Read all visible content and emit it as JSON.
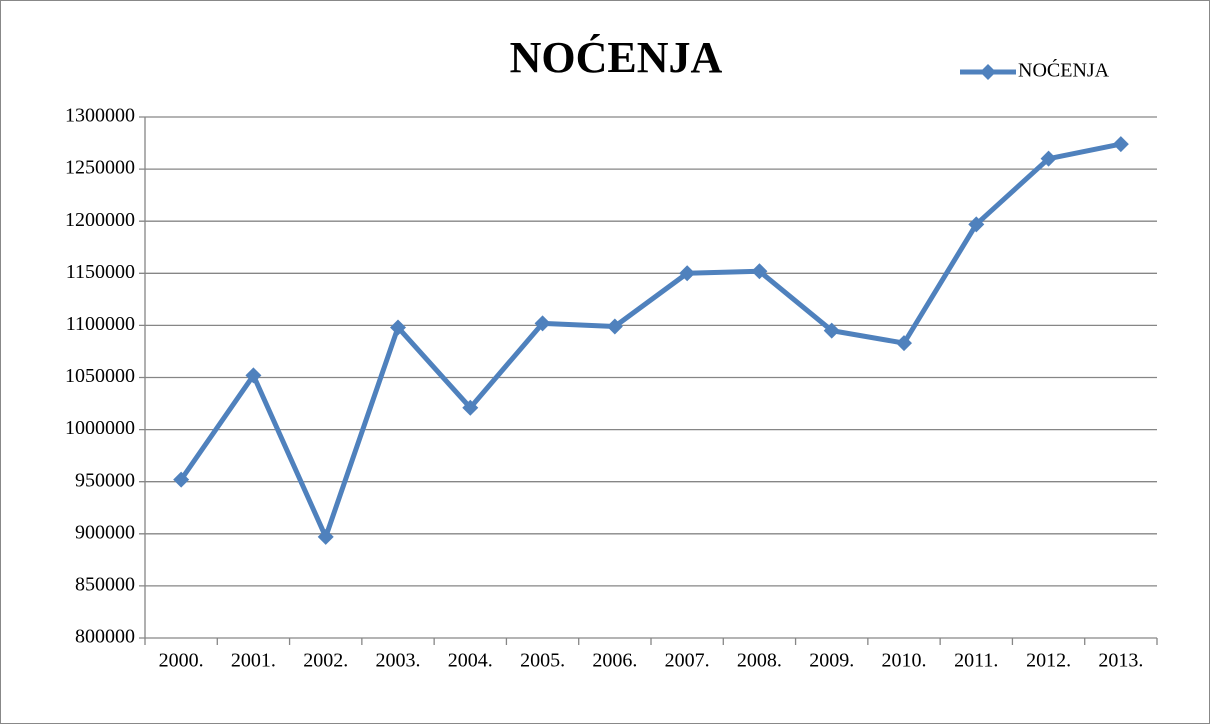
{
  "chart_data": {
    "type": "line",
    "title": "NOĆENJA",
    "categories": [
      "2000.",
      "2001.",
      "2002.",
      "2003.",
      "2004.",
      "2005.",
      "2006.",
      "2007.",
      "2008.",
      "2009.",
      "2010.",
      "2011.",
      "2012.",
      "2013."
    ],
    "series": [
      {
        "name": "NOĆENJA",
        "color": "#4f81bd",
        "values": [
          952000,
          1052000,
          897000,
          1098000,
          1021000,
          1102000,
          1099000,
          1150000,
          1152000,
          1095000,
          1083000,
          1197000,
          1260000,
          1274000
        ]
      }
    ],
    "ylim": [
      800000,
      1300000
    ],
    "yticks": [
      800000,
      850000,
      900000,
      950000,
      1000000,
      1050000,
      1100000,
      1150000,
      1200000,
      1250000,
      1300000
    ],
    "grid": true,
    "legend": "top-right"
  }
}
